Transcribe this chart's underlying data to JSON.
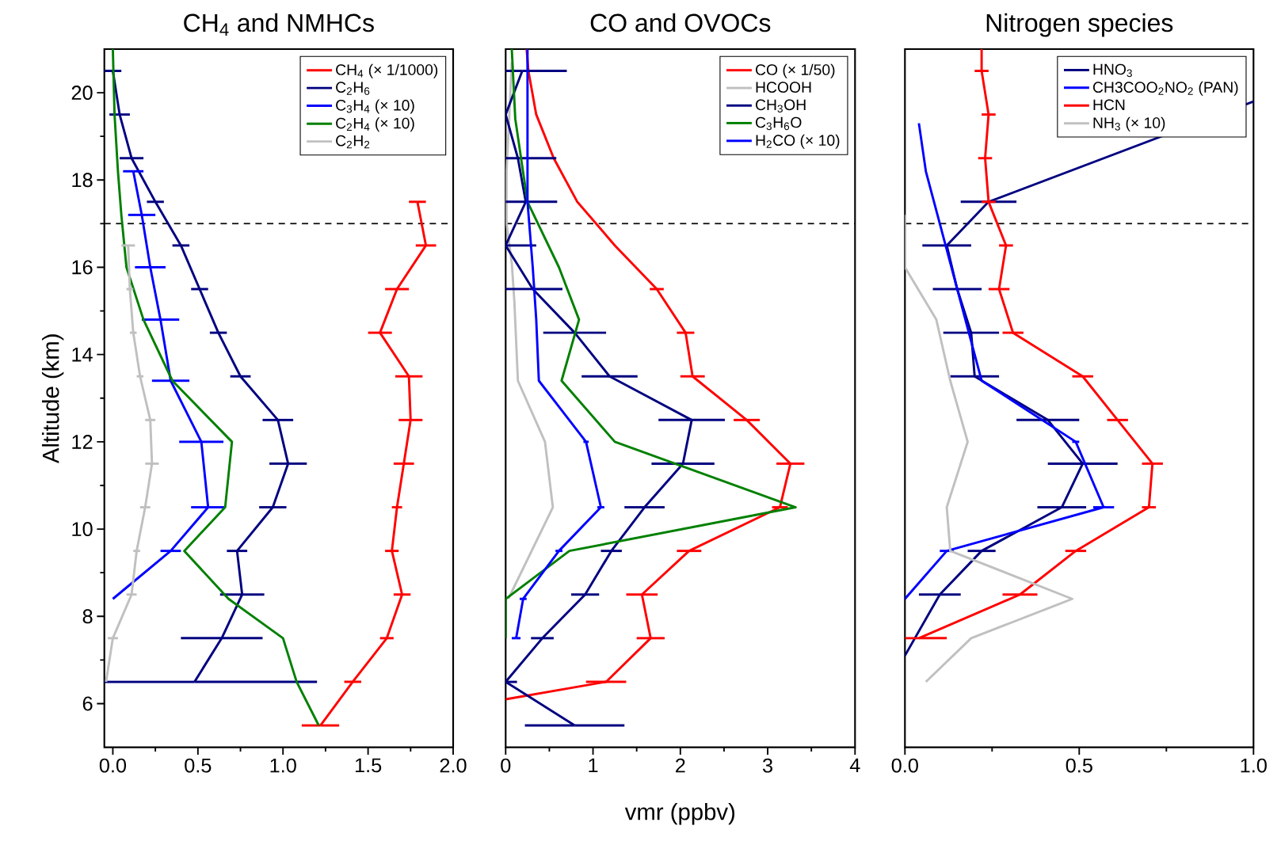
{
  "chart_data": [
    {
      "type": "line",
      "title": "CH$_{4}$ and NMHCs",
      "ylabel": "Altitude (km)",
      "legend": "top right",
      "marker": "none",
      "line_style": "solid",
      "xlim": [
        -0.05,
        2.0
      ],
      "xticks": [
        {
          "value": 0,
          "label": "0.0"
        },
        {
          "value": 0.5,
          "label": "0.5"
        },
        {
          "value": 1,
          "label": "1.0"
        },
        {
          "value": 1.5,
          "label": "1.5"
        },
        {
          "value": 2,
          "label": "2.0"
        }
      ],
      "ylim": [
        5,
        21
      ],
      "yticks": [
        6,
        8,
        10,
        12,
        14,
        16,
        18,
        20
      ],
      "ref_lines": [
        {
          "axis": "y",
          "value": 17,
          "color": "#000000",
          "line_style": "dashed"
        }
      ],
      "series": [
        {
          "name": "CH$_{4}$ (× 1/1000)",
          "color": "#ff0000",
          "x": [
            1.22,
            1.41,
            1.61,
            1.7,
            1.64,
            1.67,
            1.71,
            1.75,
            1.74,
            1.57,
            1.67,
            1.84,
            1.79
          ],
          "values": [
            5.5,
            6.5,
            7.5,
            8.5,
            9.5,
            10.5,
            11.5,
            12.5,
            13.5,
            14.5,
            15.5,
            16.5,
            17.5
          ],
          "xerrors": [
            0.11,
            0.05,
            0.04,
            0.05,
            0.04,
            0.03,
            0.06,
            0.07,
            0.08,
            0.07,
            0.07,
            0.06,
            0.05
          ]
        },
        {
          "name": "C$_{2}$H$_{6}$",
          "color": "#000080",
          "x": [
            0.48,
            0.64,
            0.76,
            0.73,
            0.94,
            1.03,
            0.97,
            0.75,
            0.62,
            0.51,
            0.4,
            0.25,
            0.11,
            0.04,
            0.0
          ],
          "values": [
            6.5,
            7.5,
            8.5,
            9.5,
            10.5,
            11.5,
            12.5,
            13.5,
            14.5,
            15.5,
            16.5,
            17.5,
            18.5,
            19.5,
            20.5
          ],
          "xerrors": [
            [
              -0.05,
              1.2
            ],
            0.24,
            0.13,
            0.06,
            0.08,
            0.11,
            0.09,
            0.06,
            0.05,
            0.05,
            0.05,
            0.05,
            0.07,
            0.06,
            0.05
          ]
        },
        {
          "name": "C$_{3}$H$_{4}$ (× 10)",
          "color": "#0000ff",
          "x": [
            0.0,
            0.34,
            0.56,
            0.52,
            0.34,
            0.28,
            0.22,
            0.17,
            0.12
          ],
          "values": [
            8.4,
            9.5,
            10.5,
            12.0,
            13.4,
            14.8,
            16.0,
            17.2,
            18.2
          ],
          "xerrors": [
            null,
            0.06,
            0.1,
            0.13,
            0.11,
            0.11,
            0.09,
            0.08,
            0.06
          ]
        },
        {
          "name": "C$_{2}$H$_{4}$ (× 10)",
          "color": "#008000",
          "x": [
            1.21,
            1.08,
            1.0,
            0.68,
            0.42,
            0.66,
            0.7,
            0.35,
            0.18,
            0.08,
            0.05,
            0.03,
            0.01,
            0.0
          ],
          "values": [
            5.5,
            6.5,
            7.5,
            8.4,
            9.5,
            10.5,
            12.0,
            13.4,
            14.8,
            16.0,
            17.2,
            18.2,
            19.5,
            21.0
          ]
        },
        {
          "name": "C$_{2}$H$_{2}$",
          "color": "#c0c0c0",
          "x": [
            -0.04,
            0.0,
            0.11,
            0.14,
            0.19,
            0.23,
            0.22,
            0.16,
            0.12,
            0.1,
            0.09
          ],
          "values": [
            6.5,
            7.5,
            8.5,
            9.5,
            10.5,
            11.5,
            12.5,
            13.5,
            14.5,
            15.5,
            16.5
          ],
          "xerrors": [
            null,
            0.03,
            0.03,
            0.02,
            0.03,
            0.04,
            0.03,
            0.02,
            0.02,
            0.02,
            0.04
          ]
        }
      ]
    },
    {
      "type": "line",
      "title": "CO and OVOCs",
      "xlabel": "vmr (ppbv)",
      "legend": "top right",
      "marker": "none",
      "line_style": "solid",
      "tick_labels": "x",
      "xlim": [
        0,
        4
      ],
      "xticks": [
        0,
        1,
        2,
        3,
        4
      ],
      "ylim": [
        5,
        21
      ],
      "ref_lines": [
        {
          "axis": "y",
          "value": 17,
          "color": "#000000",
          "line_style": "dashed"
        }
      ],
      "series": [
        {
          "name": "CO (× 1/50)",
          "color": "#ff0000",
          "x": [
            0.0,
            1.15,
            1.66,
            1.56,
            2.1,
            3.14,
            3.26,
            2.76,
            2.14,
            2.06,
            1.73,
            1.25,
            0.82,
            0.55,
            0.35,
            0.26,
            0.24
          ],
          "values": [
            6.1,
            6.5,
            7.5,
            8.5,
            9.5,
            10.5,
            11.5,
            12.5,
            13.5,
            14.5,
            15.5,
            16.5,
            17.5,
            18.5,
            19.5,
            20.5,
            21.0
          ],
          "xerrors": [
            null,
            0.23,
            0.16,
            0.18,
            0.14,
            0.09,
            0.16,
            0.15,
            0.14,
            0.1,
            0.08,
            null,
            null,
            null,
            null,
            null,
            null
          ]
        },
        {
          "name": "HCOOH",
          "color": "#c0c0c0",
          "x": [
            0.03,
            0.54,
            0.45,
            0.14,
            0.1,
            0.07,
            0.01,
            0.01,
            0.04,
            0.07
          ],
          "values": [
            8.4,
            10.5,
            12.0,
            13.4,
            15.2,
            16.1,
            17.0,
            18.2,
            19.4,
            20.7
          ]
        },
        {
          "name": "CH$_{3}$OH",
          "color": "#000080",
          "x": [
            0.79,
            0.0,
            0.42,
            0.91,
            1.21,
            1.59,
            2.03,
            2.13,
            1.19,
            0.79,
            0.31,
            0.0,
            0.23,
            0.14,
            0.0,
            0.19
          ],
          "values": [
            5.5,
            6.5,
            7.5,
            8.5,
            9.5,
            10.5,
            11.5,
            12.5,
            13.5,
            14.5,
            15.5,
            16.5,
            17.5,
            18.5,
            19.5,
            20.5
          ],
          "xerrors": [
            0.57,
            [
              0,
              0.13
            ],
            0.13,
            0.16,
            0.12,
            0.23,
            0.36,
            0.38,
            0.32,
            0.36,
            [
              0,
              0.65
            ],
            [
              0,
              0.35
            ],
            [
              0,
              0.59
            ],
            [
              0,
              0.58
            ],
            null,
            [
              0,
              0.7
            ]
          ]
        },
        {
          "name": "C$_{3}$H$_{6}$O",
          "color": "#008000",
          "x": [
            0.0,
            0.0,
            0.73,
            3.32,
            1.25,
            0.64,
            0.84,
            0.61,
            0.25,
            0.11,
            0.07
          ],
          "values": [
            7.5,
            8.4,
            9.5,
            10.5,
            12.0,
            13.4,
            14.8,
            16.0,
            17.5,
            19.4,
            21.0
          ]
        },
        {
          "name": "H$_{2}$CO (× 10)",
          "color": "#0000ff",
          "x": [
            0.12,
            0.2,
            0.61,
            1.09,
            0.92,
            0.38,
            0.35,
            0.31,
            0.25,
            0.25
          ],
          "values": [
            7.5,
            8.4,
            9.5,
            10.5,
            12.0,
            13.4,
            14.8,
            16.0,
            17.5,
            21.0
          ],
          "xerrors": [
            0.05,
            0.04,
            0.04,
            0.04,
            0.03,
            null,
            null,
            null,
            null,
            null
          ]
        }
      ]
    },
    {
      "type": "line",
      "title": "Nitrogen species",
      "legend": "top right",
      "marker": "none",
      "line_style": "solid",
      "tick_labels": "x",
      "xlim": [
        0,
        1
      ],
      "xticks": [
        {
          "value": 0,
          "label": "0.0"
        },
        {
          "value": 0.5,
          "label": "0.5"
        },
        {
          "value": 1,
          "label": "1.0"
        }
      ],
      "ylim": [
        5,
        21
      ],
      "ref_lines": [
        {
          "axis": "y",
          "value": 17,
          "color": "#000000",
          "line_style": "dashed"
        }
      ],
      "series": [
        {
          "name": "HNO$_{3}$",
          "color": "#000080",
          "x": [
            0.0,
            0.1,
            0.22,
            0.45,
            0.51,
            0.41,
            0.2,
            0.19,
            0.15,
            0.12,
            0.24,
            1.0
          ],
          "values": [
            7.1,
            8.5,
            9.5,
            10.5,
            11.5,
            12.5,
            13.5,
            14.5,
            15.5,
            16.5,
            17.5,
            19.8
          ],
          "xerrors": [
            null,
            0.06,
            0.04,
            0.07,
            0.1,
            0.09,
            0.07,
            0.08,
            0.07,
            0.07,
            0.08,
            null
          ]
        },
        {
          "name": "CH3COO$_{2}$NO$_{2}$ (PAN)",
          "color": "#0000ff",
          "x": [
            0.0,
            0.12,
            0.57,
            0.49,
            0.22,
            0.06,
            0.04
          ],
          "values": [
            8.4,
            9.5,
            10.5,
            12.0,
            13.4,
            18.2,
            19.3
          ],
          "xerrors": [
            null,
            0.02,
            0.03,
            0.01,
            null,
            null,
            null
          ]
        },
        {
          "name": "HCN",
          "color": "#ff0000",
          "x": [
            0.04,
            0.33,
            0.49,
            0.7,
            0.71,
            0.61,
            0.51,
            0.31,
            0.27,
            0.29,
            0.24,
            0.23,
            0.24,
            0.22,
            0.22
          ],
          "values": [
            7.5,
            8.5,
            9.5,
            10.5,
            11.5,
            12.5,
            13.5,
            14.5,
            15.5,
            16.5,
            17.5,
            18.5,
            19.5,
            20.5,
            21.0
          ],
          "xerrors": [
            [
              0,
              0.12
            ],
            0.05,
            0.03,
            0.02,
            0.03,
            0.03,
            0.03,
            0.03,
            0.03,
            0.02,
            0.02,
            0.02,
            0.02,
            0.02,
            null
          ]
        },
        {
          "name": "NH$_{3}$ (× 10)",
          "color": "#c0c0c0",
          "x": [
            0.06,
            0.19,
            0.48,
            0.13,
            0.12,
            0.18,
            0.13,
            0.09,
            0.0,
            0.0
          ],
          "values": [
            6.5,
            7.5,
            8.4,
            9.5,
            10.5,
            12.0,
            13.4,
            14.8,
            16.0,
            17.2
          ]
        }
      ]
    }
  ]
}
